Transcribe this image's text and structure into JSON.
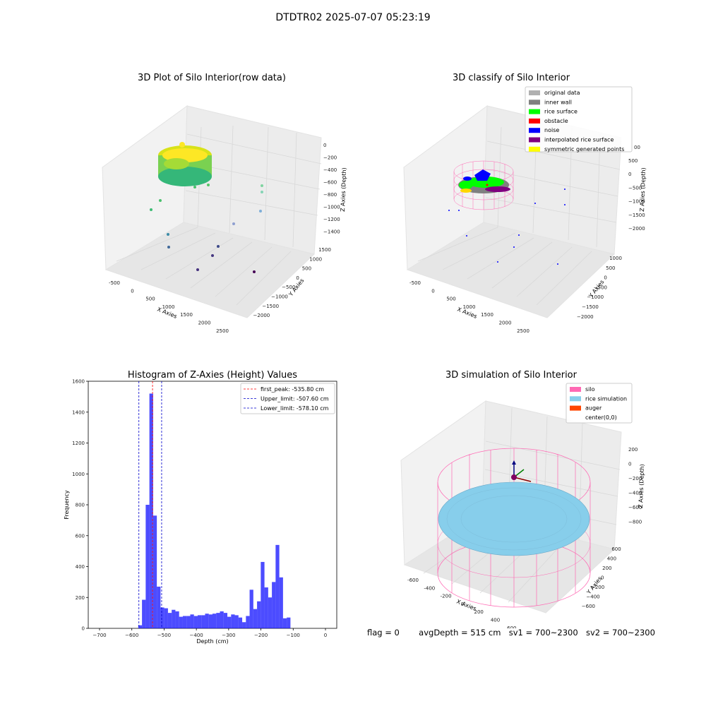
{
  "suptitle": "DTDTR02 2025-07-07 05:23:19",
  "footer": {
    "flag": "flag = 0",
    "avg_depth": "avgDepth = 515 cm",
    "sv1": "sv1 = 700~2300",
    "sv2": "sv2 = 700~2300"
  },
  "panels": {
    "raw": {
      "title": "3D Plot of Silo Interior(row data)",
      "xlabel": "X Axies",
      "ylabel": "Y Axies",
      "zlabel": "Z Axies (Depth)",
      "xticks": [
        "-500",
        "0",
        "500",
        "1000",
        "1500",
        "2000",
        "2500"
      ],
      "yticks": [
        "1500",
        "1000",
        "500",
        "0",
        "−500",
        "−1000",
        "−1500",
        "−2000"
      ],
      "zticks": [
        "0",
        "−200",
        "−400",
        "−600",
        "−800",
        "−1000",
        "−1200",
        "−1400"
      ]
    },
    "classify": {
      "title": "3D classify of Silo Interior",
      "xlabel": "X Axies",
      "ylabel": "Y Axies",
      "zlabel": "Z Axies (Depth)",
      "xticks": [
        "-500",
        "0",
        "500",
        "1000",
        "1500",
        "2000",
        "2500"
      ],
      "yticks": [
        "1000",
        "500",
        "0",
        "−500",
        "−1000",
        "−1500",
        "−2000"
      ],
      "zticks": [
        "500",
        "0",
        "−500",
        "−1000",
        "−1500",
        "−2000"
      ],
      "z_partial_tick": "00",
      "legend": [
        {
          "label": "original data",
          "color": "#b0b0b0"
        },
        {
          "label": "inner wall",
          "color": "#808080"
        },
        {
          "label": "rice surface",
          "color": "#00ff00"
        },
        {
          "label": "obstacle",
          "color": "#ff0000"
        },
        {
          "label": "noise",
          "color": "#0000ff"
        },
        {
          "label": "interpolated rice surface",
          "color": "#800080"
        },
        {
          "label": "symmetric generated points",
          "color": "#ffff00"
        }
      ]
    },
    "simulation": {
      "title": "3D simulation of Silo Interior",
      "xlabel": "X Axies",
      "ylabel": "Y Axies",
      "zlabel": "Z Axies (Depth)",
      "xticks": [
        "-600",
        "-400",
        "-200",
        "0",
        "200",
        "400",
        "600"
      ],
      "yticks": [
        "600",
        "400",
        "200",
        "0",
        "−200",
        "−400",
        "−600"
      ],
      "zticks": [
        "200",
        "0",
        "−200",
        "−400",
        "−600",
        "−800"
      ],
      "legend": [
        {
          "label": "silo",
          "color": "#ff69b4"
        },
        {
          "label": "rice simulation",
          "color": "#87ceeb"
        },
        {
          "label": "auger",
          "color": "#ff4500"
        },
        {
          "label": "center(0,0)",
          "color": "#ffffff"
        }
      ]
    }
  },
  "chart_data": {
    "type": "bar",
    "title": "Histogram of Z-Axies (Height) Values",
    "xlabel": "Depth (cm)",
    "ylabel": "Frequency",
    "xlim": [
      -735,
      35
    ],
    "ylim": [
      0,
      1600
    ],
    "xticks": [
      "−700",
      "−600",
      "−500",
      "−400",
      "−300",
      "−200",
      "−100",
      "0"
    ],
    "yticks": [
      "0",
      "200",
      "400",
      "600",
      "800",
      "1000",
      "1200",
      "1400",
      "1600"
    ],
    "bar_color": "#0000ff",
    "bin_width": 11.5,
    "bin_start": -580,
    "values": [
      20,
      185,
      800,
      1520,
      730,
      270,
      135,
      130,
      100,
      120,
      110,
      75,
      80,
      80,
      90,
      80,
      85,
      85,
      95,
      90,
      95,
      100,
      110,
      100,
      75,
      90,
      85,
      70,
      40,
      80,
      250,
      125,
      175,
      430,
      265,
      200,
      300,
      540,
      330,
      65,
      70
    ],
    "lines": [
      {
        "label": "first_peak: -535.80 cm",
        "x": -535.8,
        "color": "#ff0000",
        "style": "dashed"
      },
      {
        "label": "Upper_limit: -507.60 cm",
        "x": -507.6,
        "color": "#0000cc",
        "style": "dashed"
      },
      {
        "label": "Lower_limit: -578.10 cm",
        "x": -578.1,
        "color": "#0000cc",
        "style": "dashed"
      }
    ],
    "legend_position": "top-right"
  }
}
